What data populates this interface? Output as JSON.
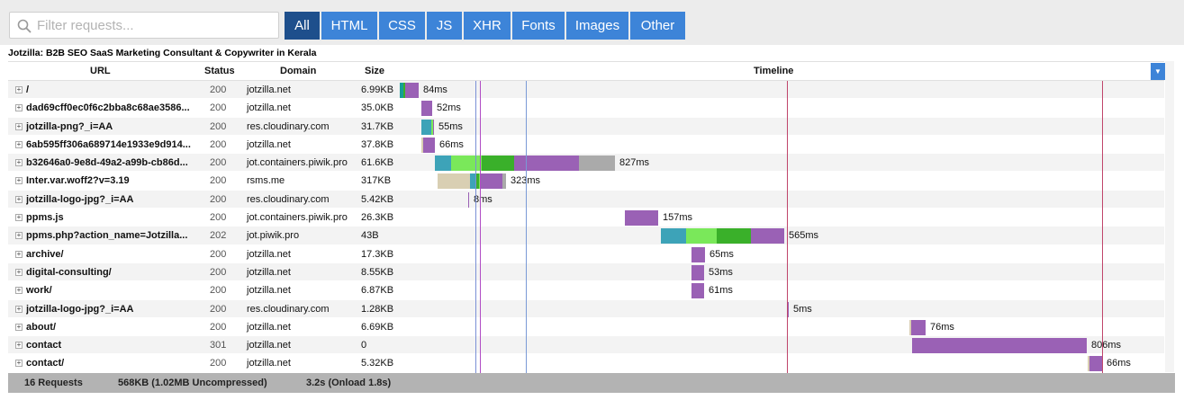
{
  "filter": {
    "placeholder": "Filter requests..."
  },
  "type_filters": [
    "All",
    "HTML",
    "CSS",
    "JS",
    "XHR",
    "Fonts",
    "Images",
    "Other"
  ],
  "active_filter": "All",
  "page_title": "Jotzilla: B2B SEO SaaS Marketing Consultant & Copywriter in Kerala",
  "columns": {
    "url": "URL",
    "status": "Status",
    "domain": "Domain",
    "size": "Size",
    "timeline": "Timeline"
  },
  "colors": {
    "blocked": "#d9cfb3",
    "dns": "#169e96",
    "connect": "#3da3b8",
    "ssl": "#b15fb8",
    "send": "#f9a33b",
    "wait": "#7ae85a",
    "wait_dark": "#3ab02a",
    "receive": "#9a61b5",
    "idle": "#aaaaaa",
    "button": "#3d84d8",
    "button_active": "#1e4f8c"
  },
  "requests": [
    {
      "url": "/",
      "status": "200",
      "domain": "jotzilla.net",
      "size": "6.99KB",
      "duration": "84ms"
    },
    {
      "url": "dad69cff0ec0f6c2bba8c68ae3586...",
      "status": "200",
      "domain": "jotzilla.net",
      "size": "35.0KB",
      "duration": "52ms"
    },
    {
      "url": "jotzilla-png?_i=AA",
      "status": "200",
      "domain": "res.cloudinary.com",
      "size": "31.7KB",
      "duration": "55ms"
    },
    {
      "url": "6ab595ff306a689714e1933e9d914...",
      "status": "200",
      "domain": "jotzilla.net",
      "size": "37.8KB",
      "duration": "66ms"
    },
    {
      "url": "b32646a0-9e8d-49a2-a99b-cb86d...",
      "status": "200",
      "domain": "jot.containers.piwik.pro",
      "size": "61.6KB",
      "duration": "827ms"
    },
    {
      "url": "Inter.var.woff2?v=3.19",
      "status": "200",
      "domain": "rsms.me",
      "size": "317KB",
      "duration": "323ms"
    },
    {
      "url": "jotzilla-logo-jpg?_i=AA",
      "status": "200",
      "domain": "res.cloudinary.com",
      "size": "5.42KB",
      "duration": "8ms"
    },
    {
      "url": "ppms.js",
      "status": "200",
      "domain": "jot.containers.piwik.pro",
      "size": "26.3KB",
      "duration": "157ms"
    },
    {
      "url": "ppms.php?action_name=Jotzilla...",
      "status": "202",
      "domain": "jot.piwik.pro",
      "size": "43B",
      "duration": "565ms"
    },
    {
      "url": "archive/",
      "status": "200",
      "domain": "jotzilla.net",
      "size": "17.3KB",
      "duration": "65ms"
    },
    {
      "url": "digital-consulting/",
      "status": "200",
      "domain": "jotzilla.net",
      "size": "8.55KB",
      "duration": "53ms"
    },
    {
      "url": "work/",
      "status": "200",
      "domain": "jotzilla.net",
      "size": "6.87KB",
      "duration": "61ms"
    },
    {
      "url": "jotzilla-logo-jpg?_i=AA",
      "status": "200",
      "domain": "res.cloudinary.com",
      "size": "1.28KB",
      "duration": "5ms"
    },
    {
      "url": "about/",
      "status": "200",
      "domain": "jotzilla.net",
      "size": "6.69KB",
      "duration": "76ms"
    },
    {
      "url": "contact",
      "status": "301",
      "domain": "jotzilla.net",
      "size": "0",
      "duration": "806ms"
    },
    {
      "url": "contact/",
      "status": "200",
      "domain": "jotzilla.net",
      "size": "5.32KB",
      "duration": "66ms"
    }
  ],
  "footer": {
    "requests": "16 Requests",
    "size": "568KB  (1.02MB Uncompressed)",
    "time": "3.2s  (Onload 1.8s)"
  }
}
